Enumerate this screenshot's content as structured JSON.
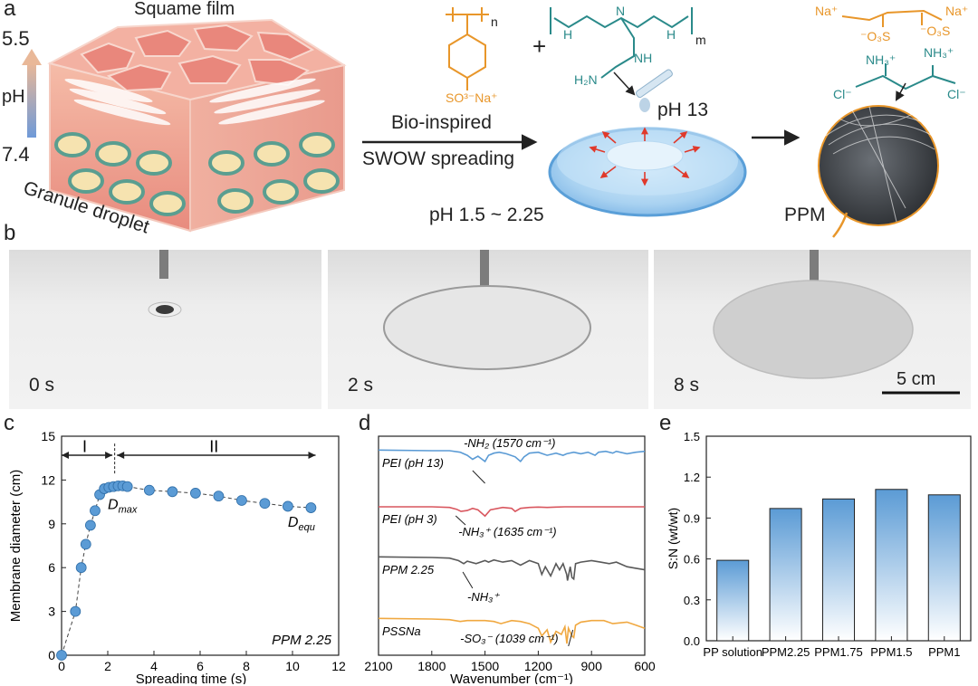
{
  "panel_letters": [
    "a",
    "b",
    "c",
    "d",
    "e"
  ],
  "panel_a": {
    "squame_film": "Squame film",
    "ph_label": "pH",
    "ph_top": "5.5",
    "ph_bottom": "7.4",
    "granule_droplet": "Granule droplet",
    "arrow_top": "Bio-inspired",
    "arrow_bottom": "SWOW spreading",
    "ph_drop": "pH 13",
    "ph_bath": "pH 1.5 ~ 2.25",
    "ppm_label": "PPM",
    "chem": {
      "pss_n": "n",
      "pss_so3na": "SO³⁻Na⁺",
      "plus": "+",
      "pei_m": "m",
      "pei_h1": "H",
      "pei_n": "N",
      "pei_h2": "H",
      "pei_nh": "NH",
      "pei_h2n": "H₂N",
      "prod_na1": "Na⁺",
      "prod_na2": "Na⁺",
      "prod_o3s1": "⁻O₃S",
      "prod_o3s2": "⁻O₃S",
      "prod_nh3a": "NH₃⁺",
      "prod_nh3b": "NH₃⁺",
      "prod_cl1": "Cl⁻",
      "prod_cl2": "Cl⁻"
    },
    "colors": {
      "pss": "#e8962a",
      "pei": "#2a8a8a",
      "skin": "#e9968a",
      "bath": "#7fb8e6"
    }
  },
  "panel_b": {
    "times": [
      "0 s",
      "2 s",
      "8 s"
    ],
    "scale_bar": "5 cm"
  },
  "chart_data": [
    {
      "type": "scatter",
      "xlabel": "Spreading time (s)",
      "ylabel": "Membrane diameter (cm)",
      "xlim": [
        0,
        12
      ],
      "ylim": [
        0,
        15
      ],
      "xticks": [
        0,
        2,
        4,
        6,
        8,
        10,
        12
      ],
      "yticks": [
        0,
        3,
        6,
        9,
        12,
        15
      ],
      "regions": [
        "I",
        "II"
      ],
      "annotations": [
        "D",
        "max",
        "D",
        "equ",
        "PPM 2.25"
      ],
      "series": [
        {
          "x": [
            0,
            0.6,
            0.85,
            1.05,
            1.25,
            1.45,
            1.65,
            1.85,
            2.05,
            2.25,
            2.45,
            2.65,
            2.85,
            3.8,
            4.8,
            5.8,
            6.8,
            7.8,
            8.8,
            9.8,
            10.8
          ],
          "y": [
            0,
            3.0,
            6.0,
            7.6,
            8.9,
            9.9,
            11.0,
            11.4,
            11.5,
            11.55,
            11.6,
            11.6,
            11.55,
            11.3,
            11.2,
            11.1,
            10.9,
            10.6,
            10.4,
            10.2,
            10.1
          ],
          "color": "#5b9bd5"
        }
      ]
    },
    {
      "type": "line",
      "xlabel": "Wavenumber (cm⁻¹)",
      "xlim": [
        2100,
        600
      ],
      "xticks": [
        2100,
        1800,
        1500,
        1200,
        900,
        600
      ],
      "series": [
        {
          "name": "PEI (pH 13)",
          "color": "#5b9bd5",
          "offset": 4.0,
          "x": [
            2100,
            1800,
            1700,
            1640,
            1600,
            1570,
            1540,
            1500,
            1480,
            1450,
            1420,
            1380,
            1330,
            1300,
            1280,
            1250,
            1200,
            1150,
            1100,
            1060,
            1040,
            1000,
            960,
            920,
            880,
            860,
            820,
            780,
            760,
            700,
            650,
            600
          ],
          "y": [
            0.02,
            0.0,
            0.0,
            -0.05,
            -0.15,
            -0.28,
            -0.18,
            -0.35,
            -0.15,
            -0.08,
            -0.05,
            -0.1,
            -0.2,
            -0.35,
            -0.2,
            -0.08,
            -0.05,
            -0.15,
            -0.08,
            -0.15,
            -0.1,
            -0.05,
            -0.1,
            -0.05,
            -0.15,
            -0.05,
            -0.02,
            -0.08,
            -0.02,
            -0.1,
            -0.05,
            -0.02
          ]
        },
        {
          "name": "PEI (pH 3)",
          "color": "#d9575f",
          "offset": 2.6,
          "x": [
            2100,
            1800,
            1700,
            1660,
            1635,
            1600,
            1570,
            1540,
            1500,
            1470,
            1400,
            1350,
            1330,
            1300,
            1250,
            1200,
            1150,
            1100,
            1050,
            1000,
            900,
            800,
            700,
            600
          ],
          "y": [
            0.0,
            0.0,
            -0.02,
            -0.08,
            -0.15,
            -0.12,
            -0.05,
            -0.1,
            -0.3,
            -0.1,
            -0.02,
            -0.05,
            -0.15,
            -0.05,
            -0.02,
            -0.01,
            -0.02,
            -0.01,
            0.0,
            0.0,
            0.0,
            0.0,
            0.0,
            0.0
          ]
        },
        {
          "name": "PPM 2.25",
          "color": "#595959",
          "offset": 1.2,
          "x": [
            2100,
            1800,
            1700,
            1650,
            1620,
            1600,
            1550,
            1500,
            1480,
            1450,
            1400,
            1350,
            1300,
            1250,
            1200,
            1180,
            1160,
            1130,
            1100,
            1080,
            1060,
            1040,
            1035,
            1020,
            1010,
            1000,
            990,
            960,
            900,
            850,
            800,
            760,
            700,
            650,
            600
          ],
          "y": [
            0.02,
            0.0,
            -0.02,
            -0.1,
            -0.2,
            -0.12,
            -0.2,
            -0.1,
            -0.15,
            -0.08,
            -0.15,
            -0.1,
            -0.25,
            -0.1,
            -0.2,
            -0.55,
            -0.3,
            -0.6,
            -0.2,
            -0.4,
            -0.2,
            -0.55,
            -0.75,
            -0.3,
            -0.65,
            -0.7,
            -0.2,
            -0.15,
            -0.1,
            -0.15,
            -0.2,
            -0.15,
            -0.3,
            -0.35,
            -0.4
          ]
        },
        {
          "name": "PSSNa",
          "color": "#f0a840",
          "offset": 0.0,
          "x": [
            2100,
            1800,
            1700,
            1640,
            1600,
            1500,
            1450,
            1410,
            1350,
            1300,
            1250,
            1200,
            1180,
            1150,
            1130,
            1100,
            1070,
            1050,
            1039,
            1030,
            1010,
            1000,
            990,
            960,
            900,
            830,
            780,
            700,
            650,
            600
          ],
          "y": [
            0.02,
            0.0,
            -0.02,
            -0.08,
            -0.05,
            -0.05,
            -0.08,
            -0.15,
            -0.05,
            -0.08,
            -0.15,
            -0.3,
            -0.55,
            -0.35,
            -0.75,
            -0.4,
            -0.5,
            -0.25,
            -0.8,
            -0.3,
            -0.55,
            -0.6,
            -0.2,
            -0.1,
            -0.05,
            -0.05,
            -0.15,
            -0.1,
            -0.2,
            -0.3
          ]
        }
      ],
      "annotations": [
        "-NH₂ (1570 cm⁻¹)",
        "-NH₃⁺ (1635 cm⁻¹)",
        "-NH₃⁺",
        "-SO₃⁻ (1039 cm⁻¹)"
      ]
    },
    {
      "type": "bar",
      "ylabel": "S:N (wt/wt)",
      "categories": [
        "PP solution",
        "PPM2.25",
        "PPM1.75",
        "PPM1.5",
        "PPM1"
      ],
      "values": [
        0.59,
        0.97,
        1.04,
        1.11,
        1.07
      ],
      "ylim": [
        0,
        1.5
      ],
      "yticks": [
        0.0,
        0.3,
        0.6,
        0.9,
        1.2,
        1.5
      ],
      "color": "#5b9bd5"
    }
  ]
}
